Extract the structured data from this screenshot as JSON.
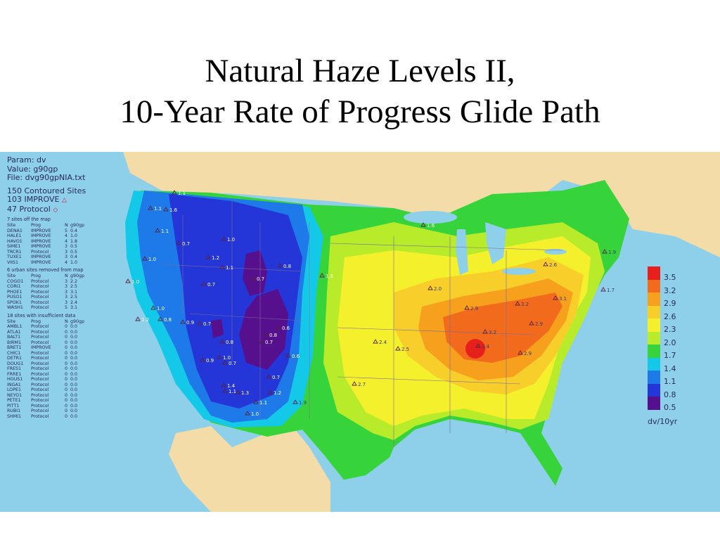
{
  "title": {
    "line1": "Natural Haze Levels II,",
    "line2": "10-Year Rate of Progress Glide Path"
  },
  "info": {
    "param": "Param: dv",
    "value": "Value: g90gp",
    "file": "File: dvg90gpNIA.txt",
    "contoured": "150 Contoured Sites",
    "improve": "103 IMPROVE",
    "protocol": "47 Protocol",
    "sections": [
      {
        "heading": "7 sites off the map",
        "cols": [
          "Site",
          "Prog",
          "N",
          "g90gp"
        ],
        "rows": [
          [
            "DENA1",
            "IMPROVE",
            "5",
            "0.4"
          ],
          [
            "HALE1",
            "IMPROVE",
            "4",
            "1.0"
          ],
          [
            "HAVO1",
            "IMPROVE",
            "4",
            "1.8"
          ],
          [
            "SIME1",
            "IMPROVE",
            "3",
            "0.5"
          ],
          [
            "TRCR1",
            "Protocol",
            "3",
            "0.5"
          ],
          [
            "TUXE1",
            "IMPROVE",
            "3",
            "0.4"
          ],
          [
            "VIIS1",
            "IMPROVE",
            "4",
            "1.0"
          ]
        ]
      },
      {
        "heading": "6 urban sites removed from map",
        "cols": [
          "Site",
          "Prog",
          "N",
          "g90gp"
        ],
        "rows": [
          [
            "COGO1",
            "Protocol",
            "3",
            "2.2"
          ],
          [
            "CORI1",
            "Protocol",
            "3",
            "2.5"
          ],
          [
            "PHOE1",
            "Protocol",
            "3",
            "3.1"
          ],
          [
            "PUSO1",
            "Protocol",
            "3",
            "2.5"
          ],
          [
            "SPOK1",
            "Protocol",
            "3",
            "2.4"
          ],
          [
            "WASH1",
            "Protocol",
            "5",
            "3.1"
          ]
        ]
      },
      {
        "heading": "18 sites with insufficient data",
        "cols": [
          "Site",
          "Prog",
          "N",
          "g90gp"
        ],
        "rows": [
          [
            "AMBL1",
            "Protocol",
            "0",
            "0.0"
          ],
          [
            "ATLA1",
            "Protocol",
            "0",
            "0.0"
          ],
          [
            "BALT1",
            "Protocol",
            "0",
            "0.0"
          ],
          [
            "BIRM1",
            "Protocol",
            "0",
            "0.0"
          ],
          [
            "BRET1",
            "IMPROVE",
            "0",
            "0.0"
          ],
          [
            "CHIC1",
            "Protocol",
            "0",
            "0.0"
          ],
          [
            "DETR1",
            "Protocol",
            "0",
            "0.0"
          ],
          [
            "DOUG1",
            "Protocol",
            "0",
            "0.0"
          ],
          [
            "FRES1",
            "Protocol",
            "0",
            "0.0"
          ],
          [
            "FRRE1",
            "Protocol",
            "0",
            "0.0"
          ],
          [
            "HOUS1",
            "Protocol",
            "0",
            "0.0"
          ],
          [
            "INGA1",
            "Protocol",
            "0",
            "0.0"
          ],
          [
            "LOPE1",
            "Protocol",
            "0",
            "0.0"
          ],
          [
            "NEYO1",
            "Protocol",
            "0",
            "0.0"
          ],
          [
            "PETE1",
            "Protocol",
            "0",
            "0.0"
          ],
          [
            "PITT1",
            "Protocol",
            "0",
            "0.0"
          ],
          [
            "RUBI1",
            "Protocol",
            "0",
            "0.0"
          ],
          [
            "SHMI1",
            "Protocol",
            "0",
            "0.0"
          ]
        ]
      }
    ]
  },
  "legend": {
    "items": [
      {
        "label": "3.5",
        "color": "#e8201c"
      },
      {
        "label": "3.2",
        "color": "#f26a1b"
      },
      {
        "label": "2.9",
        "color": "#f6a01e"
      },
      {
        "label": "2.6",
        "color": "#f8cf2a"
      },
      {
        "label": "2.3",
        "color": "#f4f02c"
      },
      {
        "label": "2.0",
        "color": "#b8ec2a"
      },
      {
        "label": "1.7",
        "color": "#36d43a"
      },
      {
        "label": "1.4",
        "color": "#14c8e8"
      },
      {
        "label": "1.1",
        "color": "#1e7ae8"
      },
      {
        "label": "0.8",
        "color": "#2436d8"
      },
      {
        "label": "0.5",
        "color": "#56108e"
      }
    ],
    "unit": "dv/10yr"
  },
  "map": {
    "ocean_color": "#8ecfe9",
    "land_color": "#f4dca8",
    "site_labels": [
      {
        "text": "1.1"
      },
      {
        "text": "1.6"
      },
      {
        "text": "1.1"
      },
      {
        "text": "1.1"
      },
      {
        "text": "1.0"
      },
      {
        "text": "1.0"
      },
      {
        "text": "0.7"
      },
      {
        "text": "1.2"
      },
      {
        "text": "0.7"
      },
      {
        "text": "1.0"
      },
      {
        "text": "1.2"
      },
      {
        "text": "0.8"
      },
      {
        "text": "1.0"
      },
      {
        "text": "1.1"
      },
      {
        "text": "0.7"
      },
      {
        "text": "0.8"
      },
      {
        "text": "0.7"
      },
      {
        "text": "0.7"
      },
      {
        "text": "0.8"
      },
      {
        "text": "0.6"
      },
      {
        "text": "0.9"
      },
      {
        "text": "0.7"
      },
      {
        "text": "0.7"
      },
      {
        "text": "0.8"
      },
      {
        "text": "0.6"
      },
      {
        "text": "1.0"
      },
      {
        "text": "1.1"
      },
      {
        "text": "1.3"
      },
      {
        "text": "1.2"
      },
      {
        "text": "1.1"
      },
      {
        "text": "1.0"
      },
      {
        "text": "0.9"
      },
      {
        "text": "1.4"
      },
      {
        "text": "1.9"
      },
      {
        "text": "1.5"
      },
      {
        "text": "2.4"
      },
      {
        "text": "2.5"
      },
      {
        "text": "2.7"
      },
      {
        "text": "2.9"
      },
      {
        "text": "3.1"
      },
      {
        "text": "3.2"
      },
      {
        "text": "2.9"
      },
      {
        "text": "3.4"
      },
      {
        "text": "3.2"
      },
      {
        "text": "2.9"
      },
      {
        "text": "2.6"
      },
      {
        "text": "1.6"
      },
      {
        "text": "2.0"
      },
      {
        "text": "1.9"
      },
      {
        "text": "1.7"
      }
    ]
  }
}
